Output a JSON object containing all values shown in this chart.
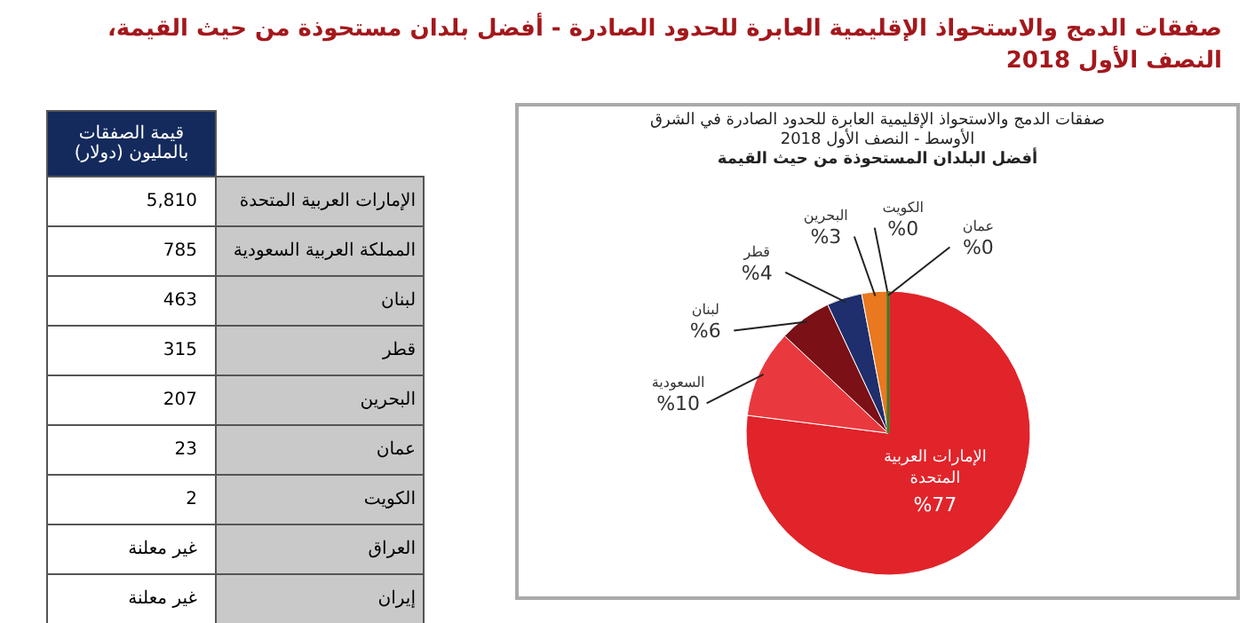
{
  "chart_data": [
    {
      "type": "other",
      "annotations": [
        "صفقات الدمج والاستحواذ الإقليمية العابرة للحدود الصادرة - أفضل بلدان مستحوذة من حيث القيمة، النصف الأول 2018"
      ],
      "title": "قيمة الصفقات بالمليون (دولار)",
      "categories": [
        "الإمارات العربية المتحدة",
        "المملكة العربية السعودية",
        "لبنان",
        "قطر",
        "البحرين",
        "عمان",
        "الكويت",
        "العراق",
        "إيران"
      ],
      "value_labels": [
        "5,810",
        "785",
        "463",
        "315",
        "207",
        "23",
        "2",
        "غير معلنة",
        "غير معلنة"
      ]
    },
    {
      "type": "pie",
      "title": "صفقات الدمج والاستحواذ الإقليمية العابرة للحدود الصادرة في الشرق الأوسط - النصف الأول 2018",
      "subtitle": "أفضل البلدان المستحوذة من حيث القيمة",
      "categories": [
        "الإمارات العربية المتحدة",
        "السعودية",
        "لبنان",
        "قطر",
        "البحرين",
        "الكويت",
        "عمان"
      ],
      "values": [
        77,
        10,
        6,
        4,
        3,
        0,
        0
      ],
      "colors": [
        "#e1232a",
        "#e9393e",
        "#7b1016",
        "#1f2e6c",
        "#e9781f",
        "#a08a2a",
        "#3f7a2a"
      ],
      "value_labels": [
        "%77",
        "%10",
        "%6",
        "%4",
        "%3",
        "%0",
        "%0"
      ]
    }
  ]
}
